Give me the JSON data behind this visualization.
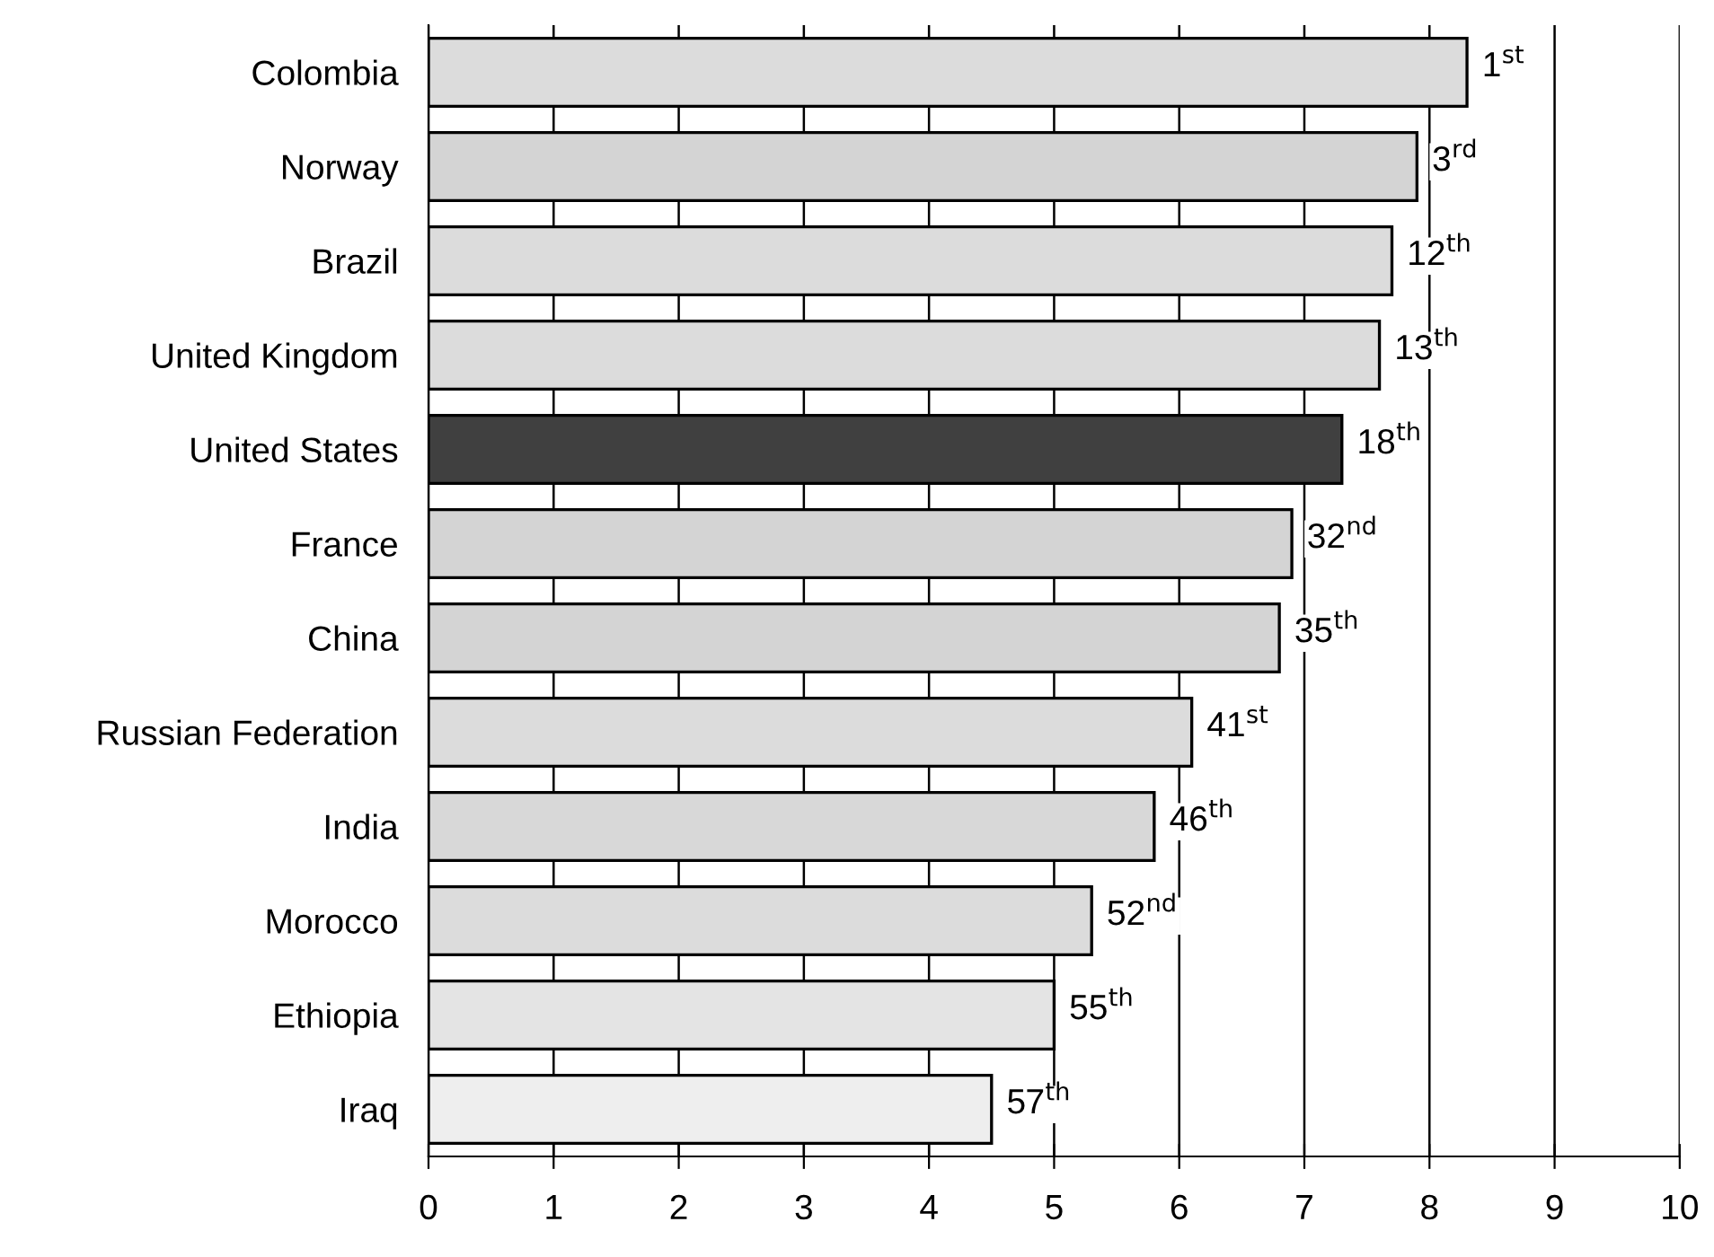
{
  "chart_data": {
    "type": "bar",
    "orientation": "horizontal",
    "categories": [
      "Colombia",
      "Norway",
      "Brazil",
      "United Kingdom",
      "United States",
      "France",
      "China",
      "Russian Federation",
      "India",
      "Morocco",
      "Ethiopia",
      "Iraq"
    ],
    "values": [
      8.3,
      7.9,
      7.7,
      7.6,
      7.3,
      6.9,
      6.8,
      6.1,
      5.8,
      5.3,
      5.0,
      4.5
    ],
    "colors": [
      "#dcdcdc",
      "#d4d4d4",
      "#dcdcdc",
      "#dcdcdc",
      "#404040",
      "#d4d4d4",
      "#d4d4d4",
      "#dcdcdc",
      "#d8d8d8",
      "#dcdcdc",
      "#e4e4e4",
      "#eeeeee"
    ],
    "annotations": [
      {
        "text": "1$^{st}$",
        "x": 8.3,
        "y": "Colombia"
      },
      {
        "text": "3$^{rd}$",
        "x": 7.9,
        "y": "Norway"
      },
      {
        "text": "12$^{th}$",
        "x": 7.7,
        "y": "Brazil"
      },
      {
        "text": "13$^{th}$",
        "x": 7.6,
        "y": "United Kingdom"
      },
      {
        "text": "18$^{th}$",
        "x": 7.3,
        "y": "United States"
      },
      {
        "text": "32$^{nd}$",
        "x": 6.9,
        "y": "France"
      },
      {
        "text": "35$^{th}$",
        "x": 6.8,
        "y": "China"
      },
      {
        "text": "41$^{st}$",
        "x": 6.1,
        "y": "Russian Federation"
      },
      {
        "text": "46$^{th}$",
        "x": 5.8,
        "y": "India"
      },
      {
        "text": "52$^{nd}$",
        "x": 5.3,
        "y": "Morocco"
      },
      {
        "text": "55$^{th}$",
        "x": 5.0,
        "y": "Ethiopia"
      },
      {
        "text": "57$^{th}$",
        "x": 4.5,
        "y": "Iraq"
      }
    ],
    "xlim": [
      0,
      10
    ],
    "xticks": [
      0,
      1,
      2,
      3,
      4,
      5,
      6,
      7,
      8,
      9,
      10
    ],
    "grid": "x"
  }
}
